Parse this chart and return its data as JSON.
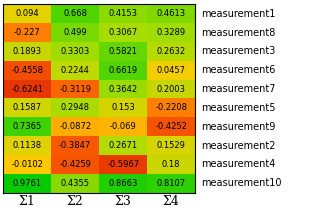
{
  "rows": [
    "measurement1",
    "measurement8",
    "measurement3",
    "measurement6",
    "measurement7",
    "measurement5",
    "measurement9",
    "measurement2",
    "measurement4",
    "measurement10"
  ],
  "cols": [
    "Σ1",
    "Σ2",
    "Σ3",
    "Σ4"
  ],
  "values": [
    [
      0.094,
      0.668,
      0.4153,
      0.4613
    ],
    [
      -0.227,
      0.499,
      0.3067,
      0.3289
    ],
    [
      0.1893,
      0.3303,
      0.5821,
      0.2632
    ],
    [
      -0.4558,
      0.2244,
      0.6619,
      0.0457
    ],
    [
      -0.6241,
      -0.3119,
      0.3642,
      0.2003
    ],
    [
      0.1587,
      0.2948,
      0.153,
      -0.2208
    ],
    [
      0.7365,
      -0.0872,
      -0.069,
      -0.4252
    ],
    [
      0.1138,
      -0.3847,
      0.2671,
      0.1529
    ],
    [
      -0.0102,
      -0.4259,
      -0.5967,
      0.18
    ],
    [
      0.9761,
      0.4355,
      0.8663,
      0.8107
    ]
  ],
  "vmin": -1.0,
  "vmax": 1.0,
  "cell_fontsize": 6.0,
  "row_fontsize": 7.0,
  "col_fontsize": 9.0,
  "cmap_colors": [
    [
      0.0,
      "#cc0000"
    ],
    [
      0.35,
      "#ff6600"
    ],
    [
      0.5,
      "#ffcc00"
    ],
    [
      0.65,
      "#aadd00"
    ],
    [
      1.0,
      "#00cc00"
    ]
  ]
}
